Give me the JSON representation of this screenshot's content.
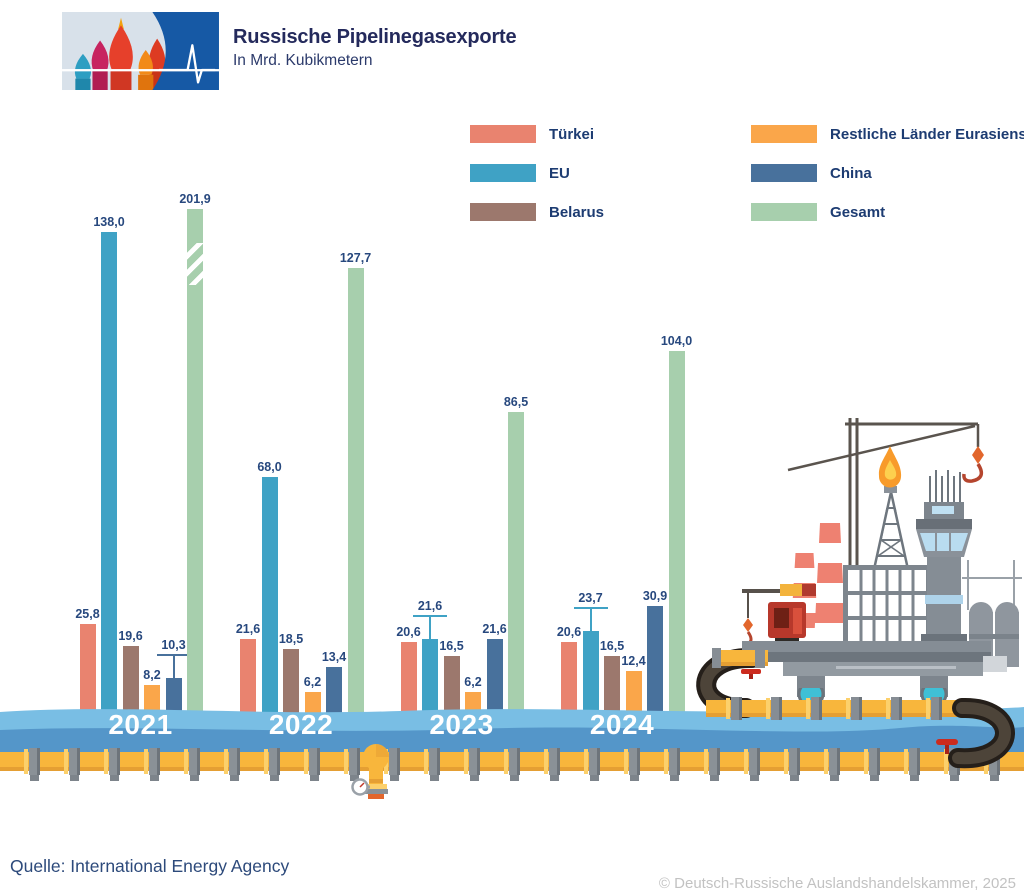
{
  "header": {
    "title": "Russische Pipelinegasexporte",
    "subtitle": "In Mrd. Kubikmetern"
  },
  "legend": {
    "columns": [
      [
        {
          "label": "Türkei",
          "color": "#e9836f"
        },
        {
          "label": "EU",
          "color": "#3fa2c5"
        },
        {
          "label": "Belarus",
          "color": "#9c786d"
        }
      ],
      [
        {
          "label": "Restliche Länder Eurasiens",
          "color": "#faa64a"
        },
        {
          "label": "China",
          "color": "#48719c"
        },
        {
          "label": "Gesamt",
          "color": "#a7cfad"
        }
      ]
    ]
  },
  "chart_data": {
    "type": "bar",
    "title": "Russische Pipelinegasexporte",
    "ylabel": "Mrd. Kubikmeter",
    "categories": [
      "2021",
      "2022",
      "2023",
      "2024"
    ],
    "series": [
      {
        "name": "Türkei",
        "color": "#e9836f",
        "values": [
          25.8,
          21.6,
          20.6,
          20.6
        ]
      },
      {
        "name": "EU",
        "color": "#3fa2c5",
        "values": [
          138.0,
          68.0,
          21.6,
          23.7
        ],
        "leader_label_years": [
          "2023",
          "2024"
        ]
      },
      {
        "name": "Belarus",
        "color": "#9c786d",
        "values": [
          19.6,
          18.5,
          16.5,
          16.5
        ]
      },
      {
        "name": "Restliche Länder Eurasiens",
        "color": "#faa64a",
        "values": [
          8.2,
          6.2,
          6.2,
          12.4
        ]
      },
      {
        "name": "China",
        "color": "#48719c",
        "values": [
          10.3,
          13.4,
          21.6,
          30.9
        ],
        "leader_label_years": [
          "2021"
        ]
      },
      {
        "name": "Gesamt",
        "color": "#a7cfad",
        "values": [
          201.9,
          127.7,
          86.5,
          104.0
        ],
        "axis_break_years": [
          "2021"
        ]
      }
    ],
    "value_label_format": "German decimal comma, one decimal, shown above each bar",
    "axes": "no visible axes or gridlines; baseline is a pictorial water band",
    "legend_position": "top-right, two columns",
    "note": "2021 Gesamt bar is drawn truncated with white diagonal axis-break stripes"
  },
  "footer": {
    "source": "Quelle: International Energy Agency",
    "copyright": "© Deutsch-Russische Auslandshandelskammer, 2025"
  }
}
